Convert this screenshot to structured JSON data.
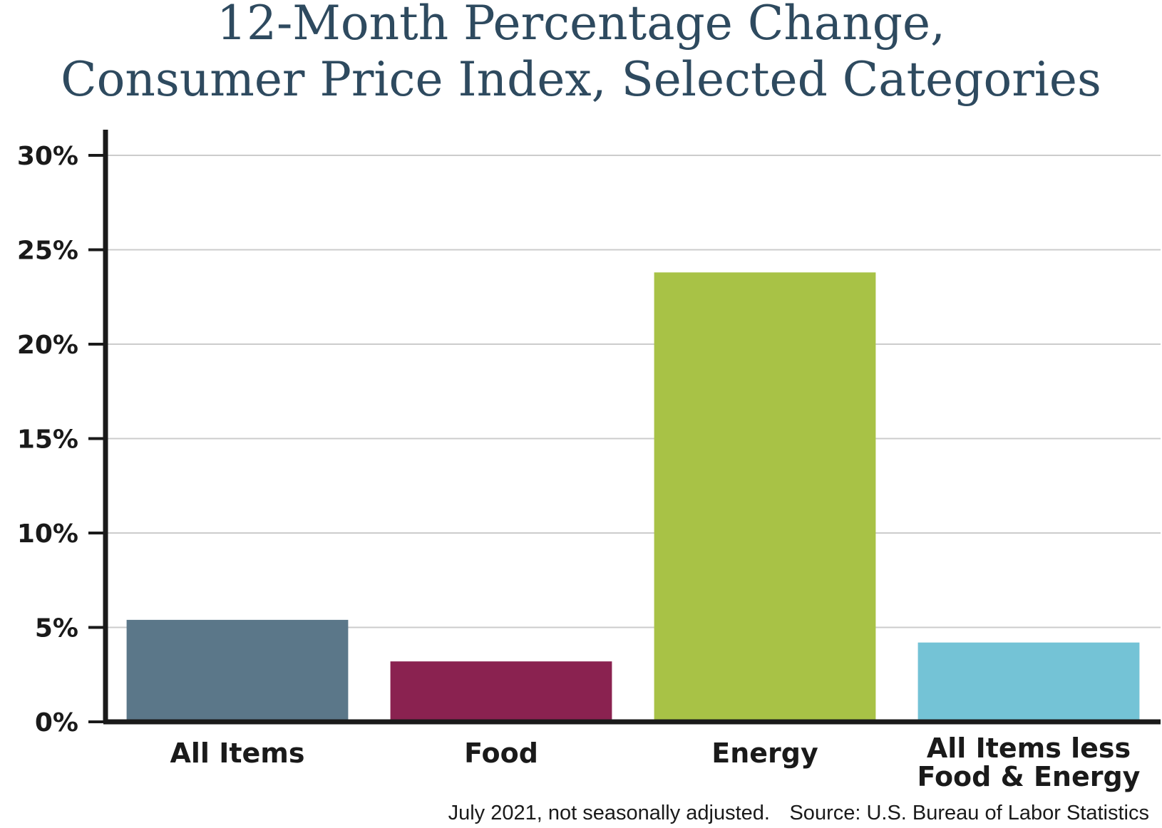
{
  "colors": {
    "title": "#2e4a5f",
    "axis": "#1a1a1a",
    "grid": "#cccccc",
    "tick_text": "#1a1a1a",
    "footnote": "#1a1a1a"
  },
  "chart_data": {
    "type": "bar",
    "title": "12-Month Percentage Change,",
    "subtitle": "Consumer Price Index, Selected Categories",
    "xlabel": "",
    "ylabel": "",
    "ylim": [
      0,
      30
    ],
    "yticks": [
      0,
      5,
      10,
      15,
      20,
      25,
      30
    ],
    "ytick_labels": [
      "0%",
      "5%",
      "10%",
      "15%",
      "20%",
      "25%",
      "30%"
    ],
    "grid": true,
    "legend": "none",
    "categories": [
      {
        "lines": [
          "All Items"
        ]
      },
      {
        "lines": [
          "Food"
        ]
      },
      {
        "lines": [
          "Energy"
        ]
      },
      {
        "lines": [
          "All Items less",
          "Food & Energy"
        ]
      }
    ],
    "values": [
      5.4,
      3.2,
      23.8,
      4.2
    ],
    "bar_colors": [
      "#5b7789",
      "#8a2250",
      "#a8c246",
      "#74c3d6"
    ],
    "footnotes": [
      "July 2021, not seasonally adjusted.",
      "Source: U.S. Bureau of Labor Statistics"
    ]
  }
}
